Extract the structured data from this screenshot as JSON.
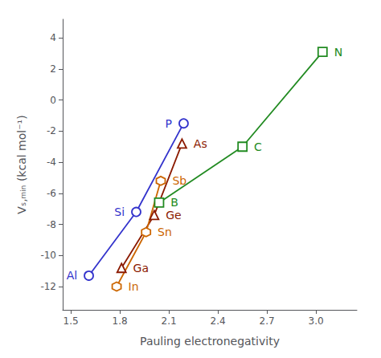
{
  "chart_data": {
    "type": "line",
    "xlabel": "Pauling electronegativity",
    "ylabel": "Vₛ,ₘᵢₙ (kcal mol⁻¹)",
    "xlim": [
      1.45,
      3.25
    ],
    "ylim": [
      -13.5,
      5.2
    ],
    "xticks": [
      1.5,
      1.8,
      2.1,
      2.4,
      2.7,
      {
        "value": 3.0,
        "label": "3.0"
      }
    ],
    "yticks": [
      -12,
      -10,
      -8,
      -6,
      -4,
      -2,
      0,
      2,
      4
    ],
    "grid": false,
    "series": [
      {
        "color": "#3333cc",
        "marker": "circle",
        "x": [
          1.61,
          1.9,
          2.19
        ],
        "values": [
          -11.3,
          -7.2,
          -1.5
        ],
        "labels": [
          "Al",
          "Si",
          "P"
        ]
      },
      {
        "color": "#8B1A00",
        "marker": "triangle",
        "x": [
          1.81,
          2.01,
          2.18
        ],
        "values": [
          -10.8,
          -7.4,
          -2.8
        ],
        "labels": [
          "Ga",
          "Ge",
          "As"
        ]
      },
      {
        "color": "#cc6600",
        "marker": "hexagon",
        "x": [
          1.78,
          1.96,
          2.05
        ],
        "values": [
          -12.0,
          -8.5,
          -5.2
        ],
        "labels": [
          "In",
          "Sn",
          "Sb"
        ]
      },
      {
        "color": "#228B22",
        "marker": "square",
        "x": [
          2.04,
          2.55,
          3.04
        ],
        "values": [
          -6.6,
          -3.0,
          3.1
        ],
        "labels": [
          "B",
          "C",
          "N"
        ]
      }
    ]
  }
}
